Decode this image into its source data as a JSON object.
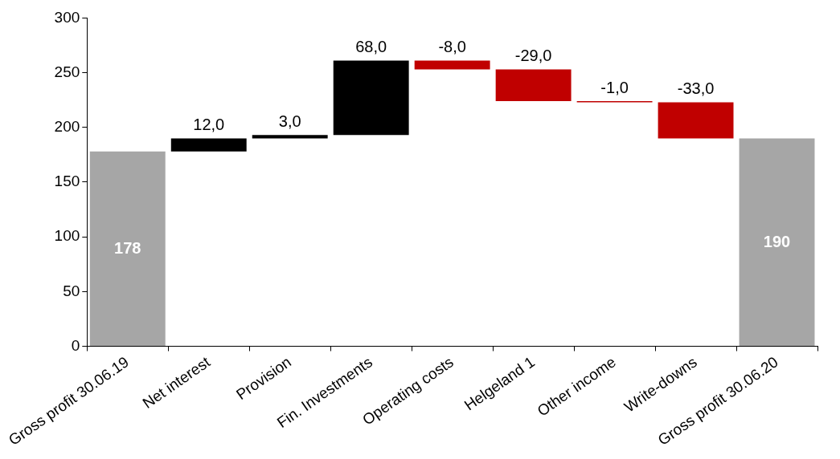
{
  "chart_data": {
    "type": "bar",
    "categories": [
      "Gross profit 30.06.19",
      "Net interest",
      "Provision",
      "Fin. Investments",
      "Operating costs",
      "Helgeland 1",
      "Other income",
      "Write-downs",
      "Gross profit 30.06.20"
    ],
    "values": [
      178,
      12,
      3,
      68,
      -8,
      -29,
      -1,
      -33,
      190
    ],
    "base": [
      0,
      178,
      190,
      193,
      261,
      253,
      224,
      223,
      0
    ],
    "colors": [
      "#a6a6a6",
      "#000000",
      "#000000",
      "#000000",
      "#c00000",
      "#c00000",
      "#c00000",
      "#c00000",
      "#a6a6a6"
    ],
    "value_labels": [
      "178",
      "12,0",
      "3,0",
      "68,0",
      "-8,0",
      "-29,0",
      "-1,0",
      "-33,0",
      "190"
    ],
    "ylim": [
      0,
      300
    ],
    "yticks": [
      0,
      50,
      100,
      150,
      200,
      250,
      300
    ],
    "grid": false,
    "legend": false
  }
}
